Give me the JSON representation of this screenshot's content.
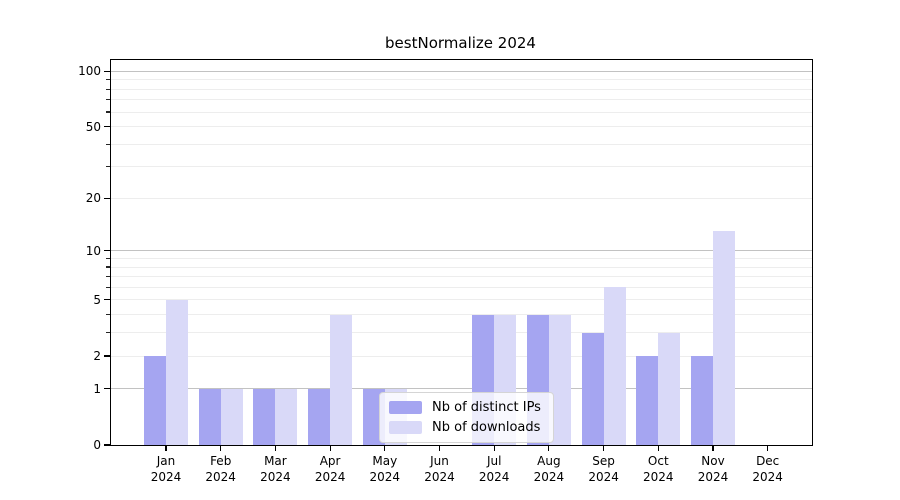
{
  "title": "bestNormalize 2024",
  "colors": {
    "distinct_ips_bar": "#a5a5f1",
    "downloads_bar": "#d9d9f8",
    "grid_major": "#c2c2c2",
    "grid_minor": "#ededed",
    "axis": "#000000",
    "legend_border": "#d5d5d5",
    "legend_background": "rgba(255,255,255,0.8)"
  },
  "chart_data": {
    "type": "bar",
    "title": "bestNormalize 2024",
    "categories": [
      "Jan 2024",
      "Feb 2024",
      "Mar 2024",
      "Apr 2024",
      "May 2024",
      "Jun 2024",
      "Jul 2024",
      "Aug 2024",
      "Sep 2024",
      "Oct 2024",
      "Nov 2024",
      "Dec 2024"
    ],
    "series": [
      {
        "name": "Nb of distinct IPs",
        "color": "#a5a5f1",
        "values": [
          2,
          1,
          1,
          1,
          1,
          0,
          4,
          4,
          3,
          2,
          2,
          0
        ]
      },
      {
        "name": "Nb of downloads",
        "color": "#d9d9f8",
        "values": [
          5,
          1,
          1,
          4,
          1,
          0,
          4,
          4,
          6,
          3,
          13,
          0
        ]
      }
    ],
    "xlabel": "",
    "ylabel": "",
    "yscale": "log1p",
    "ylim": [
      0,
      115
    ],
    "yticks": [
      0,
      1,
      2,
      5,
      10,
      20,
      50,
      100
    ],
    "ytick_labels": [
      "0",
      "1",
      "2",
      "5",
      "10",
      "20",
      "50",
      "100"
    ],
    "major_gridlines": [
      1,
      10,
      100
    ],
    "minor_gridlines": [
      2,
      3,
      4,
      5,
      6,
      7,
      8,
      9,
      20,
      30,
      40,
      50,
      60,
      70,
      80,
      90
    ],
    "grid": true,
    "legend_position": "inside-bottom-center"
  }
}
